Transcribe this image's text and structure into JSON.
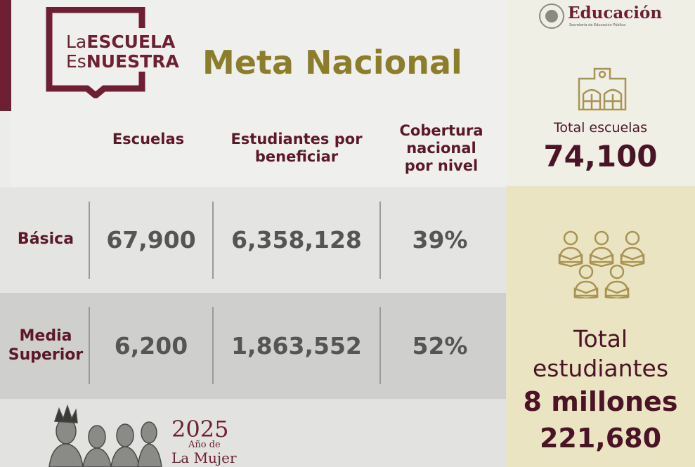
{
  "logo": {
    "line1_light": "La",
    "line1_bold": "ESCUELA",
    "line2_light": "Es",
    "line2_bold": "NUESTRA"
  },
  "title": "Meta Nacional",
  "header_brand": {
    "name": "Educación",
    "subtitle": "Secretaría de Educación Pública"
  },
  "columns": {
    "schools": "Escuelas",
    "students": "Estudiantes por beneficiar",
    "coverage": "Cobertura nacional por nivel"
  },
  "rows": [
    {
      "level": "Básica",
      "schools": "67,900",
      "students": "6,358,128",
      "coverage": "39%"
    },
    {
      "level": "Media Superior",
      "schools": "6,200",
      "students": "1,863,552",
      "coverage": "52%"
    }
  ],
  "totals": {
    "schools_label": "Total escuelas",
    "schools_value": "74,100",
    "students_label_1": "Total",
    "students_label_2": "estudiantes",
    "students_value_1": "8 millones",
    "students_value_2": "221,680"
  },
  "footer": {
    "year": "2025",
    "line1": "Año de",
    "line2": "La Mujer"
  },
  "colors": {
    "maroon": "#6e1f33",
    "gold": "#8b7d2a",
    "value_gray": "#555555",
    "panel_tan": "#ebe4c3"
  },
  "icons": [
    "school-building-icon",
    "students-reading-icon",
    "mexico-seal-icon"
  ]
}
